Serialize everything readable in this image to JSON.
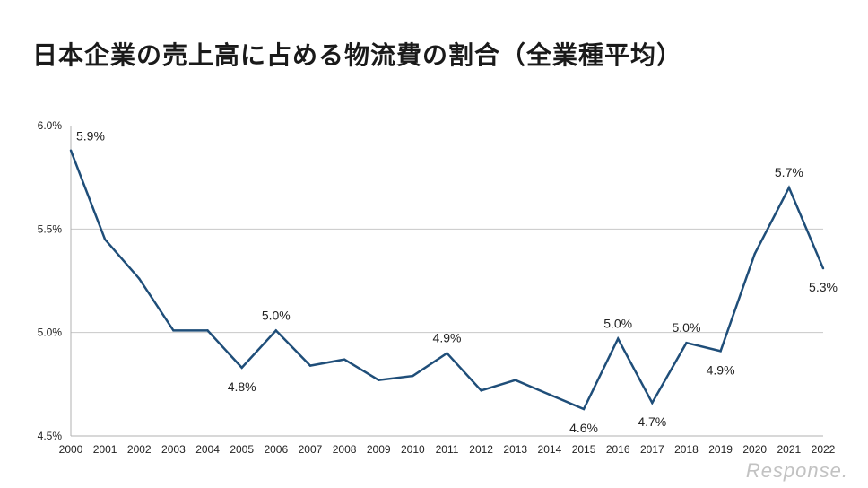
{
  "chart_data": {
    "type": "line",
    "title": "日本企業の売上高に占める物流費の割合（全業種平均）",
    "xlabel": "",
    "ylabel": "",
    "x": [
      "2000",
      "2001",
      "2002",
      "2003",
      "2004",
      "2005",
      "2006",
      "2007",
      "2008",
      "2009",
      "2010",
      "2011",
      "2012",
      "2013",
      "2014",
      "2015",
      "2016",
      "2017",
      "2018",
      "2019",
      "2020",
      "2021",
      "2022"
    ],
    "series": [
      {
        "values": [
          5.88,
          5.45,
          5.26,
          5.01,
          5.01,
          4.83,
          5.01,
          4.84,
          4.87,
          4.77,
          4.79,
          4.9,
          4.72,
          4.77,
          4.7,
          4.63,
          4.97,
          4.66,
          4.95,
          4.91,
          5.38,
          5.7,
          5.31
        ],
        "color": "#1f4e79"
      }
    ],
    "ylim": [
      4.5,
      6.0
    ],
    "yticks": [
      {
        "value": 4.5,
        "label": "4.5%"
      },
      {
        "value": 5.0,
        "label": "5.0%"
      },
      {
        "value": 5.5,
        "label": "5.5%"
      },
      {
        "value": 6.0,
        "label": "6.0%"
      }
    ],
    "gridlines": [
      5.0,
      5.5
    ],
    "annotations": [
      {
        "year": "2000",
        "label": "5.9%",
        "pos": "above-right"
      },
      {
        "year": "2005",
        "label": "4.8%",
        "pos": "below"
      },
      {
        "year": "2006",
        "label": "5.0%",
        "pos": "above"
      },
      {
        "year": "2011",
        "label": "4.9%",
        "pos": "above"
      },
      {
        "year": "2015",
        "label": "4.6%",
        "pos": "below"
      },
      {
        "year": "2016",
        "label": "5.0%",
        "pos": "above"
      },
      {
        "year": "2017",
        "label": "4.7%",
        "pos": "below"
      },
      {
        "year": "2018",
        "label": "5.0%",
        "pos": "above"
      },
      {
        "year": "2019",
        "label": "4.9%",
        "pos": "below"
      },
      {
        "year": "2021",
        "label": "5.7%",
        "pos": "above"
      },
      {
        "year": "2022",
        "label": "5.3%",
        "pos": "below"
      }
    ],
    "grid": true,
    "legend": "none"
  },
  "watermark": "Response."
}
